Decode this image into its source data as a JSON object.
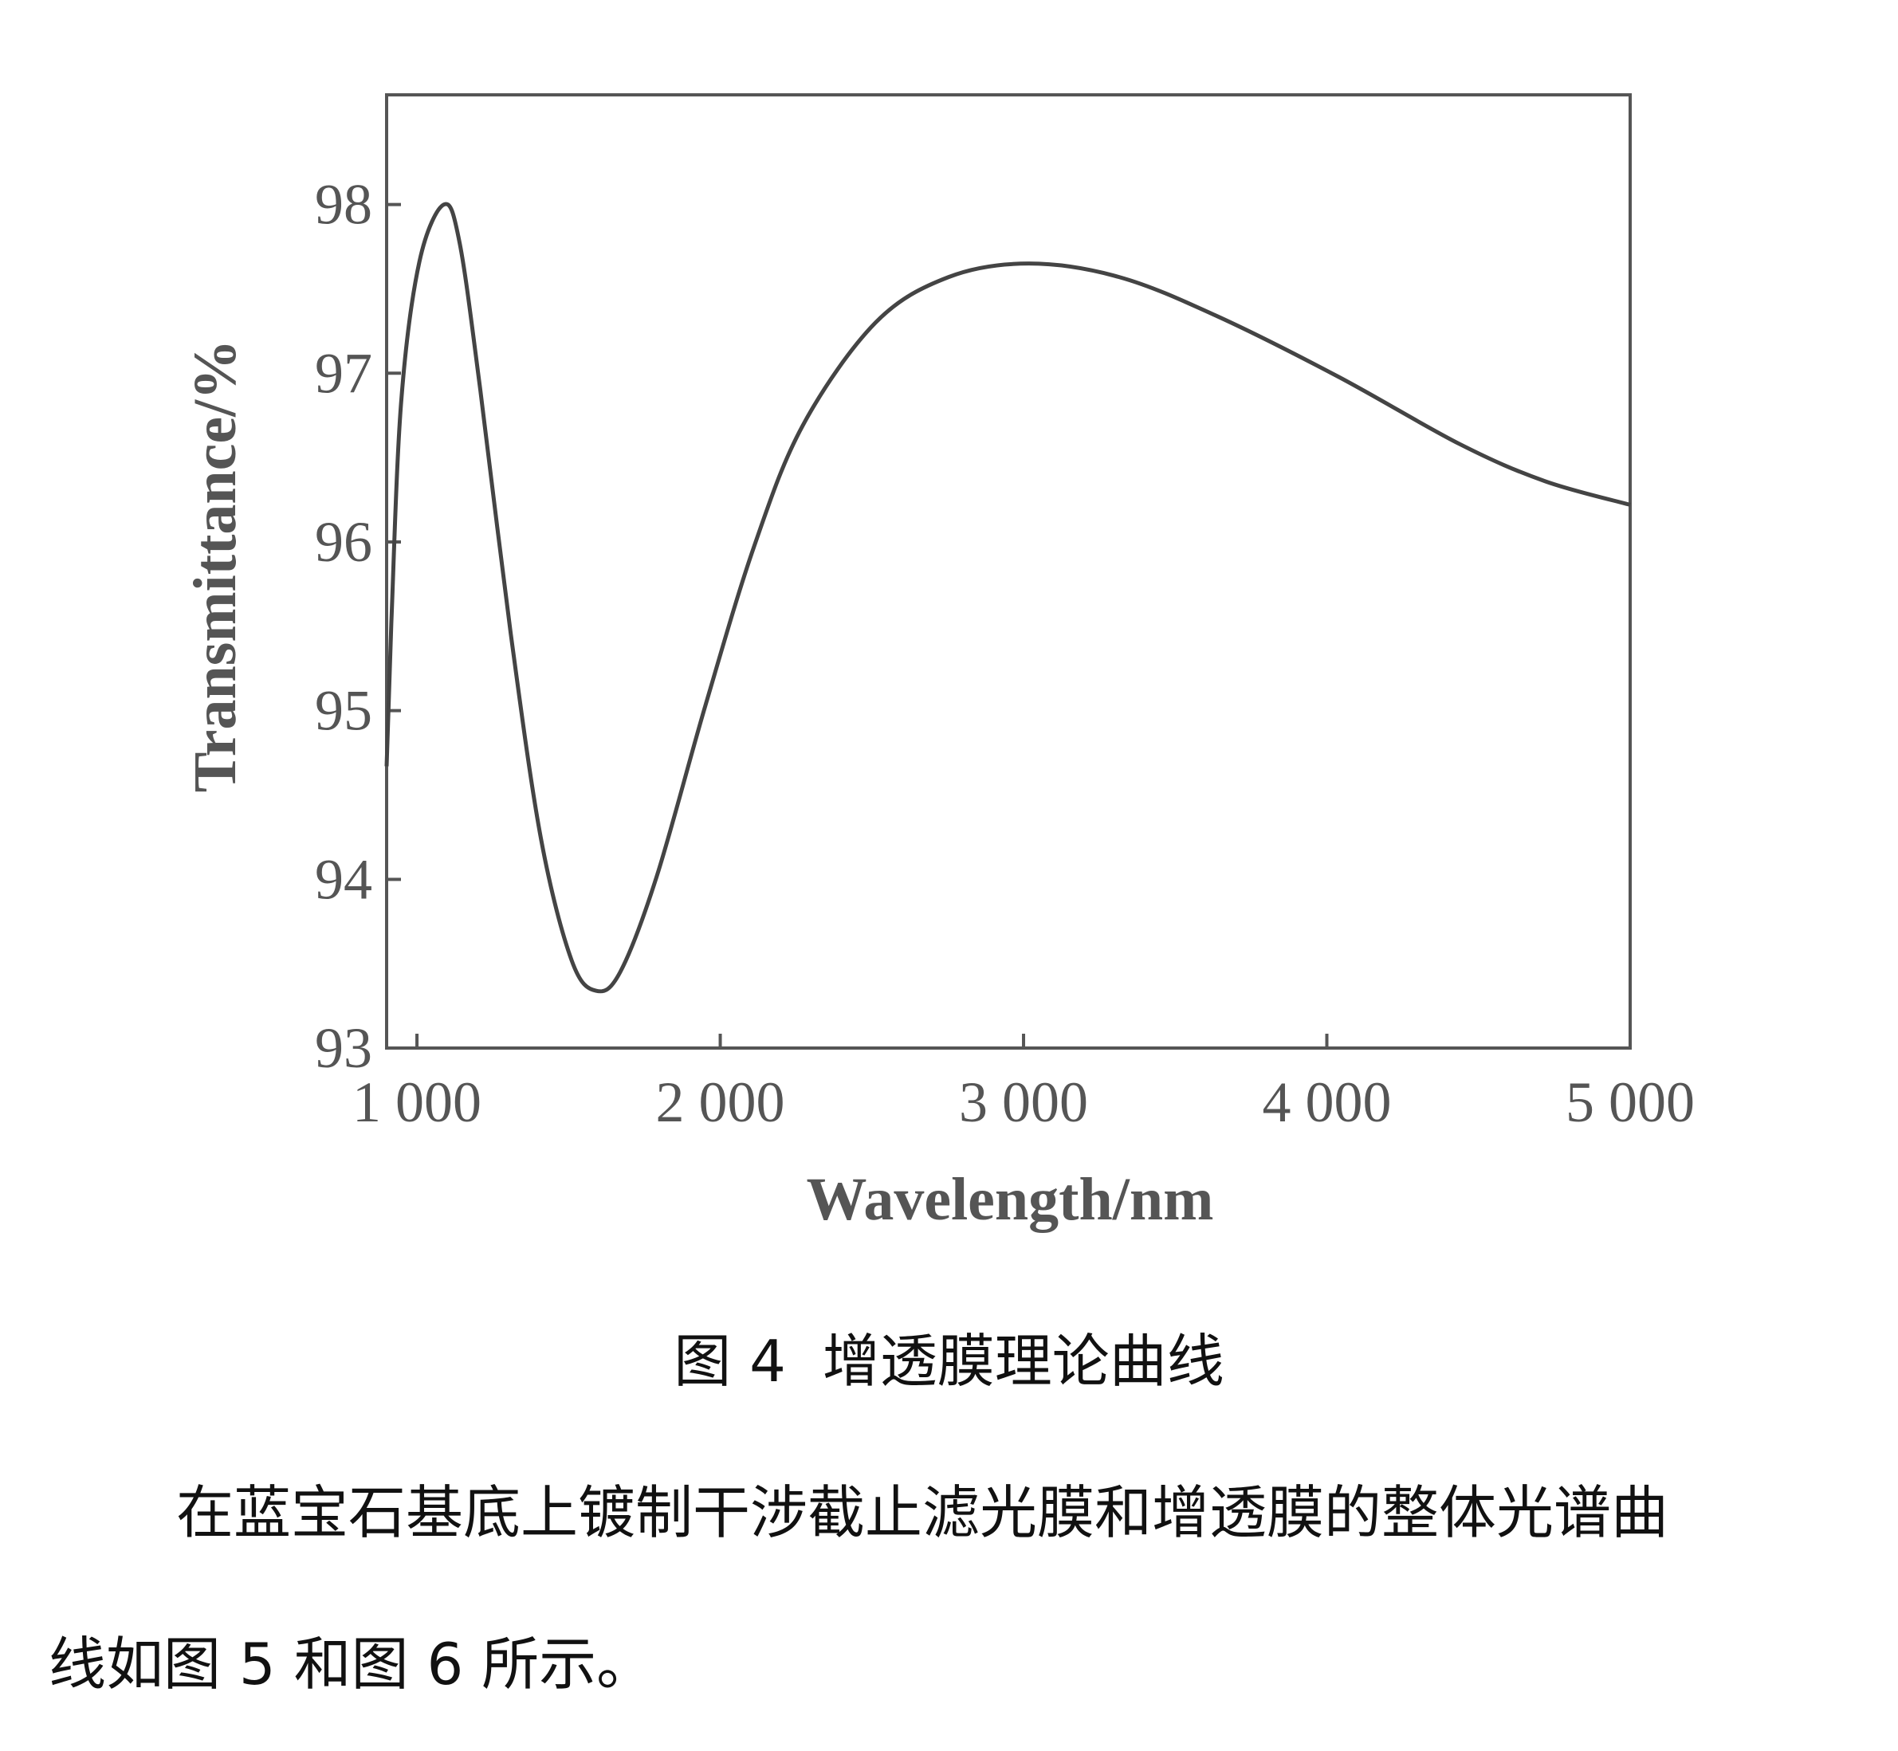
{
  "chart_data": {
    "type": "line",
    "xlabel": "Wavelength/nm",
    "ylabel": "Transmittance/%",
    "xlim": [
      900,
      5000
    ],
    "ylim": [
      93,
      98.65
    ],
    "xticks": [
      {
        "value": 1000,
        "label": "1 000"
      },
      {
        "value": 2000,
        "label": "2 000"
      },
      {
        "value": 3000,
        "label": "3 000"
      },
      {
        "value": 4000,
        "label": "4 000"
      },
      {
        "value": 5000,
        "label": "5 000"
      }
    ],
    "yticks": [
      93,
      94,
      95,
      96,
      97,
      98
    ],
    "series": [
      {
        "color": "#444444",
        "x": [
          900,
          916,
          948,
          1008,
          1089,
          1141,
          1209,
          1309,
          1409,
          1510,
          1590,
          1670,
          1791,
          1951,
          2111,
          2272,
          2512,
          2753,
          3018,
          3315,
          3636,
          4037,
          4438,
          4719,
          5000
        ],
        "values": [
          94.67,
          95.54,
          96.83,
          97.66,
          98.0,
          97.77,
          96.9,
          95.46,
          94.24,
          93.52,
          93.34,
          93.45,
          94.02,
          95.03,
          95.97,
          96.69,
          97.3,
          97.57,
          97.65,
          97.57,
          97.34,
          96.98,
          96.58,
          96.36,
          96.22
        ]
      }
    ]
  },
  "caption": "图 4  增透膜理论曲线",
  "paragraph": {
    "lines": [
      "在蓝宝石基底上镀制干涉截止滤光膜和增透膜的整体光谱曲",
      "线如图 5 和图 6 所示。"
    ]
  }
}
